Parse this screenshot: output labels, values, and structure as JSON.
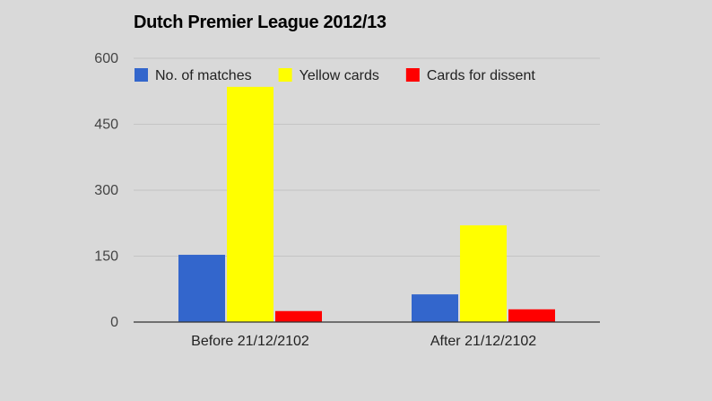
{
  "chart_data": {
    "type": "bar",
    "title": "Dutch Premier League 2012/13",
    "xlabel": "",
    "ylabel": "",
    "categories": [
      "Before 21/12/2102",
      "After 21/12/2102"
    ],
    "series": [
      {
        "name": "No. of matches",
        "values": [
          153,
          63
        ],
        "color": "#3366cc"
      },
      {
        "name": "Yellow cards",
        "values": [
          535,
          220
        ],
        "color": "#ffff00"
      },
      {
        "name": "Cards for dissent",
        "values": [
          25,
          29
        ],
        "color": "#ff0000"
      }
    ],
    "ylim": [
      0,
      600
    ],
    "yticks": [
      0,
      150,
      300,
      450,
      600
    ],
    "grid": true,
    "legend_position": "top"
  }
}
